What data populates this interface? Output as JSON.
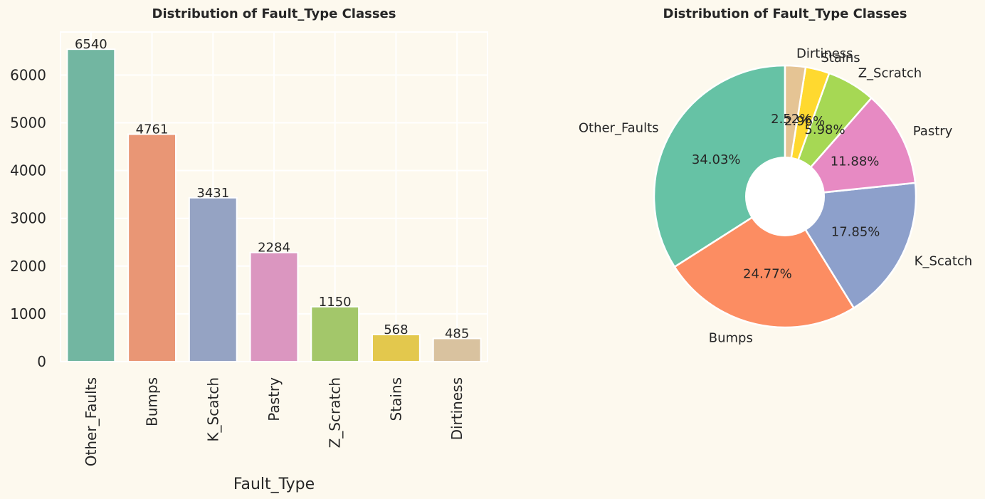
{
  "chart_data": [
    {
      "type": "bar",
      "title": "Distribution of Fault_Type Classes",
      "xlabel": "Fault_Type",
      "ylabel": "",
      "categories": [
        "Other_Faults",
        "Bumps",
        "K_Scatch",
        "Pastry",
        "Z_Scratch",
        "Stains",
        "Dirtiness"
      ],
      "values": [
        6540,
        4761,
        3431,
        2284,
        1150,
        568,
        485
      ],
      "value_labels": [
        "6540",
        "4761",
        "3431",
        "2284",
        "1150",
        "568",
        "485"
      ],
      "ylim": [
        0,
        6900
      ],
      "yticks": [
        0,
        1000,
        2000,
        3000,
        4000,
        5000,
        6000
      ],
      "ytick_labels": [
        "0",
        "1000",
        "2000",
        "3000",
        "4000",
        "5000",
        "6000"
      ],
      "colors": [
        "#72b6a1",
        "#e99675",
        "#95a3c3",
        "#db96c0",
        "#a3c76a",
        "#e3c84d",
        "#d9c29f"
      ],
      "grid": true,
      "legend": "none"
    },
    {
      "type": "pie",
      "title": "Distribution of Fault_Type Classes",
      "labels": [
        "Other_Faults",
        "Bumps",
        "K_Scatch",
        "Pastry",
        "Z_Scratch",
        "Stains",
        "Dirtiness"
      ],
      "values": [
        34.03,
        24.77,
        17.85,
        11.88,
        5.98,
        2.96,
        2.52
      ],
      "pct_labels": [
        "34.03%",
        "24.77%",
        "17.85%",
        "11.88%",
        "5.98%",
        "2.96%",
        "2.52%"
      ],
      "colors": [
        "#66c2a5",
        "#fc8d62",
        "#8da0cb",
        "#e78ac3",
        "#a6d854",
        "#ffd92f",
        "#e5c494"
      ],
      "start_angle_deg": 90,
      "direction": "counterclockwise",
      "donut_hole": true,
      "legend": "none"
    }
  ]
}
